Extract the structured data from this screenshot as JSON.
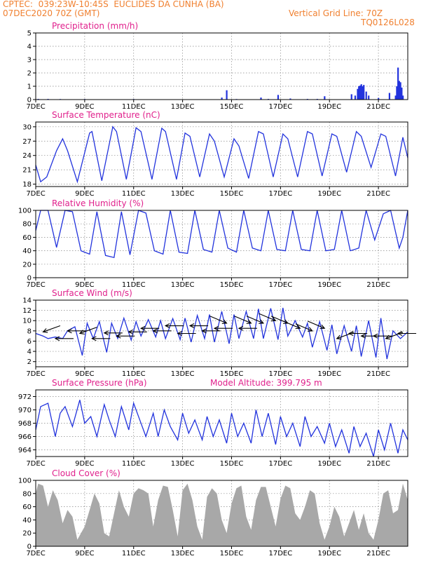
{
  "header": {
    "line1": "CPTEC:  039:23W-10:45S  EUCLIDES DA CUNHA (BA)",
    "line2_left": "07DEC2020 70Z (GMT)",
    "line2_right": "Vertical Grid Line: 70Z",
    "line3_right": "TQ0126L028"
  },
  "colors": {
    "header": "#f08030",
    "title": "#e0208c",
    "series": "#2233dd",
    "cloud": "#a8a8a8",
    "wind_arrow": "#000000"
  },
  "x_tick_labels": [
    "7DEC",
    "9DEC",
    "11DEC",
    "13DEC",
    "15DEC",
    "17DEC",
    "19DEC",
    "21DEC"
  ],
  "x_tick_days": [
    7,
    9,
    11,
    13,
    15,
    17,
    19,
    21
  ],
  "x_range_days": [
    7,
    22.2
  ],
  "chart_data": [
    {
      "type": "bar",
      "title": "Precipitation (mm/h)",
      "ylim": [
        0,
        5
      ],
      "yticks": [
        0,
        1,
        2,
        3,
        4,
        5
      ],
      "grid": true,
      "x_day": [
        7.1,
        7.5,
        8.0,
        9.0,
        11.0,
        14.6,
        14.8,
        15.2,
        16.2,
        16.5,
        16.9,
        17.4,
        18.1,
        18.5,
        18.8,
        19.9,
        20.05,
        20.15,
        20.2,
        20.25,
        20.3,
        20.35,
        20.4,
        20.5,
        20.6,
        21.0,
        21.45,
        21.7,
        21.75,
        21.8,
        21.85,
        21.9,
        21.95,
        22.0
      ],
      "values": [
        0.05,
        0.05,
        0.04,
        0.04,
        0.04,
        0.15,
        0.7,
        0.04,
        0.15,
        0.05,
        0.35,
        0.08,
        0.05,
        0.05,
        0.25,
        0.4,
        0.3,
        0.8,
        1.0,
        1.05,
        1.15,
        1.0,
        1.1,
        0.6,
        0.3,
        0.12,
        0.5,
        0.3,
        1.0,
        2.4,
        1.4,
        1.3,
        0.9,
        0.3
      ]
    },
    {
      "type": "line",
      "title": "Surface Temperature (nC)",
      "ylim": [
        17.5,
        31
      ],
      "yticks": [
        18,
        21,
        24,
        27,
        30
      ],
      "grid": true,
      "x_day": [
        7.0,
        7.2,
        7.45,
        7.85,
        8.1,
        8.3,
        8.7,
        9.2,
        9.3,
        9.7,
        10.15,
        10.3,
        10.7,
        11.1,
        11.3,
        11.75,
        12.15,
        12.3,
        12.75,
        13.1,
        13.3,
        13.7,
        14.1,
        14.3,
        14.7,
        15.1,
        15.3,
        15.7,
        16.1,
        16.3,
        16.7,
        17.1,
        17.3,
        17.7,
        18.1,
        18.3,
        18.7,
        19.1,
        19.3,
        19.7,
        20.1,
        20.3,
        20.7,
        21.1,
        21.3,
        21.7,
        22.0,
        22.2
      ],
      "series": [
        {
          "values": [
            22,
            18.5,
            19.5,
            25,
            27.5,
            25,
            18.5,
            28.7,
            29,
            18.7,
            30,
            29,
            19,
            29.8,
            29,
            19,
            29.7,
            29,
            19,
            28.7,
            28,
            19.5,
            28.5,
            27,
            19.5,
            27.5,
            26,
            19.2,
            29,
            28.5,
            19.5,
            28.5,
            27.5,
            19.5,
            29,
            28.5,
            19.7,
            28.5,
            28,
            20.5,
            29,
            28,
            21.5,
            28.5,
            28,
            19.7,
            27.8,
            23.5
          ]
        }
      ]
    },
    {
      "type": "line",
      "title": "Relative Humidity (%)",
      "ylim": [
        0,
        100
      ],
      "yticks": [
        0,
        20,
        40,
        60,
        80,
        100
      ],
      "grid": true,
      "x_day": [
        7.0,
        7.2,
        7.5,
        7.85,
        8.2,
        8.5,
        8.85,
        9.2,
        9.5,
        9.85,
        10.2,
        10.5,
        10.85,
        11.2,
        11.5,
        11.85,
        12.2,
        12.5,
        12.85,
        13.2,
        13.5,
        13.85,
        14.2,
        14.5,
        14.85,
        15.2,
        15.5,
        15.85,
        16.2,
        16.5,
        16.85,
        17.2,
        17.5,
        17.85,
        18.2,
        18.5,
        18.85,
        19.2,
        19.5,
        19.85,
        20.2,
        20.5,
        20.85,
        21.2,
        21.5,
        21.85,
        22.0,
        22.2
      ],
      "series": [
        {
          "values": [
            70,
            100,
            100,
            45,
            100,
            98,
            40,
            35,
            98,
            33,
            30,
            98,
            34,
            100,
            96,
            40,
            35,
            100,
            38,
            36,
            100,
            42,
            38,
            100,
            44,
            38,
            100,
            44,
            40,
            100,
            42,
            40,
            100,
            42,
            40,
            100,
            40,
            42,
            100,
            40,
            44,
            100,
            56,
            95,
            100,
            44,
            60,
            100
          ]
        }
      ]
    },
    {
      "type": "line",
      "title": "Surface Wind (m/s)",
      "ylim": [
        1,
        14
      ],
      "yticks": [
        2,
        4,
        6,
        8,
        10,
        12,
        14
      ],
      "grid": true,
      "x_day": [
        7.0,
        7.3,
        7.5,
        7.8,
        8.1,
        8.3,
        8.6,
        8.9,
        9.1,
        9.35,
        9.6,
        9.9,
        10.1,
        10.35,
        10.6,
        10.9,
        11.1,
        11.3,
        11.6,
        11.9,
        12.1,
        12.3,
        12.6,
        12.9,
        13.1,
        13.35,
        13.6,
        13.9,
        14.1,
        14.3,
        14.6,
        14.9,
        15.1,
        15.3,
        15.6,
        15.9,
        16.1,
        16.3,
        16.6,
        16.9,
        17.1,
        17.3,
        17.6,
        17.9,
        18.1,
        18.3,
        18.6,
        18.9,
        19.1,
        19.3,
        19.6,
        19.9,
        20.1,
        20.3,
        20.6,
        20.9,
        21.1,
        21.35,
        21.6,
        21.9,
        22.2
      ],
      "series": [
        {
          "values": [
            7.5,
            7,
            6.5,
            6.8,
            6.5,
            8,
            8.8,
            3.2,
            9.5,
            6.5,
            9.8,
            3.8,
            9.5,
            6.5,
            10.5,
            6.2,
            9.8,
            7,
            10.2,
            6.8,
            10,
            6.5,
            10.4,
            6.3,
            10.5,
            5.8,
            11,
            6.5,
            11.2,
            5.8,
            11.8,
            5.5,
            11.2,
            6.5,
            11.8,
            6.5,
            12.3,
            6.5,
            12.4,
            6.3,
            12.5,
            7,
            10,
            6.8,
            9.5,
            4.8,
            9.8,
            4.2,
            9.2,
            3.5,
            9,
            4,
            9,
            3,
            10,
            2.8,
            10.5,
            2.5,
            8,
            6.5,
            7.8
          ]
        }
      ],
      "wind_arrows": [
        {
          "day": 7.3,
          "speed": 7.8,
          "dir": "NE-SW"
        },
        {
          "day": 7.8,
          "speed": 6.5,
          "dir": "E-W"
        },
        {
          "day": 8.3,
          "speed": 8.0,
          "dir": "E-W"
        },
        {
          "day": 8.8,
          "speed": 7.5,
          "dir": "NE-SW"
        },
        {
          "day": 9.3,
          "speed": 6.5,
          "dir": "E-W"
        },
        {
          "day": 9.8,
          "speed": 7.6,
          "dir": "E-W"
        },
        {
          "day": 10.3,
          "speed": 7.0,
          "dir": "E-W"
        },
        {
          "day": 10.8,
          "speed": 7.8,
          "dir": "E-W"
        },
        {
          "day": 11.3,
          "speed": 8.5,
          "dir": "E-W"
        },
        {
          "day": 11.8,
          "speed": 8.0,
          "dir": "E-W"
        },
        {
          "day": 12.3,
          "speed": 9.0,
          "dir": "E-W"
        },
        {
          "day": 12.8,
          "speed": 7.5,
          "dir": "E-W"
        },
        {
          "day": 13.3,
          "speed": 9.0,
          "dir": "E-W"
        },
        {
          "day": 13.8,
          "speed": 8.0,
          "dir": "E-W"
        },
        {
          "day": 14.3,
          "speed": 8.5,
          "dir": "E-W"
        },
        {
          "day": 14.8,
          "speed": 9.5,
          "dir": "NW-SE"
        },
        {
          "day": 15.3,
          "speed": 8.5,
          "dir": "E-W"
        },
        {
          "day": 15.8,
          "speed": 9.5,
          "dir": "NW-SE"
        },
        {
          "day": 16.3,
          "speed": 9.5,
          "dir": "NW-SE"
        },
        {
          "day": 16.8,
          "speed": 10.0,
          "dir": "NW-SE"
        },
        {
          "day": 17.3,
          "speed": 9.5,
          "dir": "NW-SE"
        },
        {
          "day": 17.8,
          "speed": 8.5,
          "dir": "NW-SE"
        },
        {
          "day": 18.3,
          "speed": 8.0,
          "dir": "NW-SE"
        },
        {
          "day": 18.8,
          "speed": 8.5,
          "dir": "NW-SE"
        },
        {
          "day": 19.3,
          "speed": 6.5,
          "dir": "NE-SW"
        },
        {
          "day": 19.8,
          "speed": 7.5,
          "dir": "E-W"
        },
        {
          "day": 20.3,
          "speed": 7.0,
          "dir": "E-W"
        },
        {
          "day": 20.8,
          "speed": 7.0,
          "dir": "E-W"
        },
        {
          "day": 21.3,
          "speed": 6.5,
          "dir": "NE-SW"
        },
        {
          "day": 21.8,
          "speed": 7.5,
          "dir": "E-W"
        }
      ]
    },
    {
      "type": "line",
      "title": "Surface Pressure (hPa)",
      "subtitle": "Model Altitude: 399.795 m",
      "ylim": [
        963,
        973
      ],
      "yticks": [
        964,
        966,
        968,
        970,
        972
      ],
      "grid": true,
      "x_day": [
        7.0,
        7.2,
        7.5,
        7.8,
        8.0,
        8.2,
        8.5,
        8.8,
        9.0,
        9.25,
        9.5,
        9.8,
        10.0,
        10.25,
        10.5,
        10.8,
        11.0,
        11.25,
        11.5,
        11.8,
        12.0,
        12.25,
        12.5,
        12.8,
        13.0,
        13.25,
        13.5,
        13.8,
        14.0,
        14.25,
        14.5,
        14.8,
        15.0,
        15.25,
        15.5,
        15.8,
        16.0,
        16.25,
        16.5,
        16.8,
        17.0,
        17.25,
        17.5,
        17.8,
        18.0,
        18.25,
        18.5,
        18.8,
        19.0,
        19.25,
        19.5,
        19.8,
        20.0,
        20.25,
        20.5,
        20.8,
        21.0,
        21.25,
        21.5,
        21.8,
        22.0,
        22.2
      ],
      "series": [
        {
          "values": [
            967,
            970.5,
            971,
            966,
            969.5,
            970.5,
            967.5,
            971.5,
            968,
            969,
            966,
            970.8,
            968.5,
            966,
            970.5,
            967,
            971,
            968.5,
            966,
            969.5,
            966,
            970,
            967.5,
            965.5,
            969.5,
            966.5,
            968.5,
            965.5,
            969,
            966,
            968.5,
            965,
            969.5,
            966,
            968,
            965,
            970,
            966,
            969.5,
            964.8,
            969,
            966,
            968,
            964.5,
            969,
            966,
            967.5,
            965,
            968,
            964.5,
            967,
            963.5,
            967.5,
            964.5,
            966.5,
            963,
            967,
            964,
            968,
            963.5,
            967,
            965.5
          ]
        }
      ]
    },
    {
      "type": "area",
      "title": "Cloud Cover (%)",
      "ylim": [
        0,
        100
      ],
      "yticks": [
        0,
        20,
        40,
        60,
        80,
        100
      ],
      "grid": true,
      "x_day": [
        7.0,
        7.1,
        7.3,
        7.5,
        7.7,
        7.9,
        8.1,
        8.3,
        8.5,
        8.7,
        9.0,
        9.2,
        9.4,
        9.6,
        9.8,
        10.0,
        10.2,
        10.4,
        10.6,
        10.8,
        11.0,
        11.2,
        11.4,
        11.6,
        11.8,
        12.0,
        12.2,
        12.4,
        12.6,
        12.8,
        13.0,
        13.2,
        13.4,
        13.6,
        13.8,
        14.0,
        14.2,
        14.4,
        14.6,
        14.8,
        15.0,
        15.2,
        15.4,
        15.6,
        15.8,
        16.0,
        16.2,
        16.4,
        16.6,
        16.8,
        17.0,
        17.2,
        17.4,
        17.6,
        17.8,
        18.0,
        18.2,
        18.4,
        18.6,
        18.8,
        19.0,
        19.2,
        19.4,
        19.6,
        19.8,
        20.0,
        20.2,
        20.4,
        20.6,
        20.8,
        21.0,
        21.2,
        21.4,
        21.6,
        21.8,
        22.0,
        22.2
      ],
      "values": [
        80,
        95,
        92,
        60,
        85,
        70,
        35,
        55,
        45,
        10,
        30,
        55,
        80,
        65,
        20,
        15,
        50,
        85,
        60,
        45,
        80,
        88,
        85,
        80,
        30,
        70,
        92,
        90,
        55,
        15,
        85,
        95,
        70,
        30,
        10,
        75,
        88,
        80,
        40,
        20,
        65,
        88,
        92,
        45,
        25,
        70,
        90,
        90,
        60,
        30,
        72,
        92,
        88,
        50,
        40,
        60,
        85,
        80,
        35,
        10,
        30,
        60,
        45,
        15,
        35,
        55,
        25,
        50,
        20,
        10,
        40,
        80,
        85,
        50,
        55,
        95,
        70
      ]
    }
  ]
}
